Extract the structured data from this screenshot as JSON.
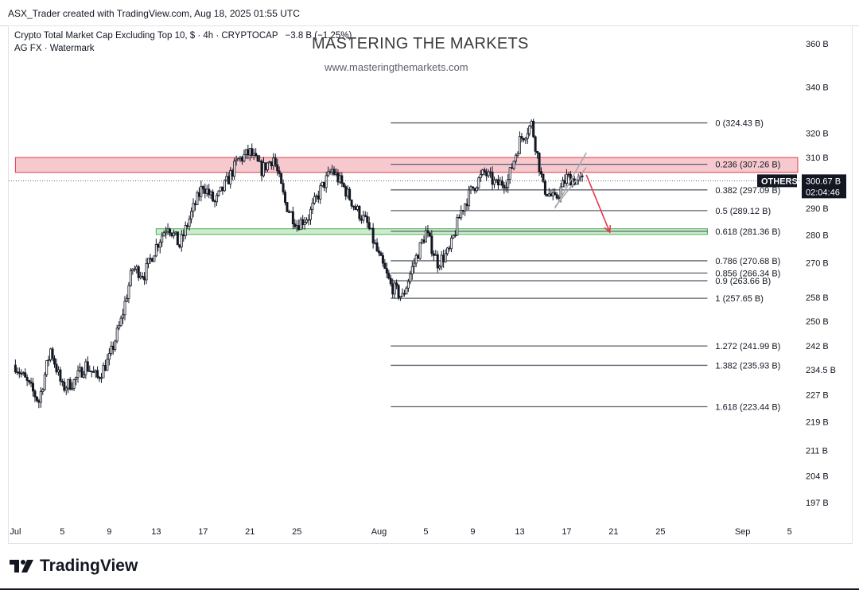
{
  "header": {
    "credit": "ASX_Trader created with TradingView.com, Aug 18, 2025 01:55 UTC"
  },
  "legend": {
    "symbol_text": "Crypto Total Market Cap Excluding Top 10, $ · 4h · CRYPTOCAP",
    "change_text": "−3.8 B (−1.25%)",
    "indicator_text": "AG FX · Watermark"
  },
  "watermark": {
    "title": "MASTERING THE MARKETS",
    "url": "www.masteringthemarkets.com"
  },
  "price_badge": {
    "label": "OTHERS",
    "price": "300.67 B",
    "countdown": "02:04:46"
  },
  "footer": {
    "brand": "TradingView"
  },
  "colors": {
    "resistance_zone": "#f6c9ce",
    "resistance_border": "#e23a4b",
    "support_zone": "#cdeccf",
    "support_border": "#4caf50",
    "candles": "#131722",
    "fib_lines": "#5d606b",
    "projection_arrow": "#e23a4b",
    "channel": "#a8aab0"
  },
  "chart_data": {
    "type": "candlestick",
    "title": "Crypto Total Market Cap Excluding Top 10",
    "interval": "4h",
    "symbol": "CRYPTOCAP:OTHERS",
    "unit": "$",
    "last_price": 300.67,
    "y_scale": "log",
    "y_ticks": [
      {
        "label": "360 B",
        "value": 360
      },
      {
        "label": "340 B",
        "value": 340
      },
      {
        "label": "320 B",
        "value": 320
      },
      {
        "label": "310 B",
        "value": 310
      },
      {
        "label": "290 B",
        "value": 290
      },
      {
        "label": "280 B",
        "value": 280
      },
      {
        "label": "270 B",
        "value": 270
      },
      {
        "label": "258 B",
        "value": 258
      },
      {
        "label": "250 B",
        "value": 250
      },
      {
        "label": "242 B",
        "value": 242
      },
      {
        "label": "234.5 B",
        "value": 234.5
      },
      {
        "label": "227 B",
        "value": 227
      },
      {
        "label": "219 B",
        "value": 219
      },
      {
        "label": "211 B",
        "value": 211
      },
      {
        "label": "204 B",
        "value": 204
      },
      {
        "label": "197 B",
        "value": 197
      }
    ],
    "x_ticks": [
      {
        "label": "Jul",
        "date": "2025-07-01"
      },
      {
        "label": "5",
        "date": "2025-07-05"
      },
      {
        "label": "9",
        "date": "2025-07-09"
      },
      {
        "label": "13",
        "date": "2025-07-13"
      },
      {
        "label": "17",
        "date": "2025-07-17"
      },
      {
        "label": "21",
        "date": "2025-07-21"
      },
      {
        "label": "25",
        "date": "2025-07-25"
      },
      {
        "label": "Aug",
        "date": "2025-08-01"
      },
      {
        "label": "5",
        "date": "2025-08-05"
      },
      {
        "label": "9",
        "date": "2025-08-09"
      },
      {
        "label": "13",
        "date": "2025-08-13"
      },
      {
        "label": "17",
        "date": "2025-08-17"
      },
      {
        "label": "21",
        "date": "2025-08-21"
      },
      {
        "label": "25",
        "date": "2025-08-25"
      },
      {
        "label": "Sep",
        "date": "2025-09-01"
      },
      {
        "label": "5",
        "date": "2025-09-05"
      }
    ],
    "price_path": [
      {
        "date": "2025-07-01",
        "value": 236
      },
      {
        "date": "2025-07-03",
        "value": 225
      },
      {
        "date": "2025-07-04",
        "value": 241
      },
      {
        "date": "2025-07-05",
        "value": 229
      },
      {
        "date": "2025-07-06",
        "value": 231
      },
      {
        "date": "2025-07-07",
        "value": 236
      },
      {
        "date": "2025-07-08",
        "value": 232
      },
      {
        "date": "2025-07-09",
        "value": 238
      },
      {
        "date": "2025-07-10",
        "value": 250
      },
      {
        "date": "2025-07-11",
        "value": 268
      },
      {
        "date": "2025-07-12",
        "value": 266
      },
      {
        "date": "2025-07-13",
        "value": 276
      },
      {
        "date": "2025-07-14",
        "value": 284
      },
      {
        "date": "2025-07-15",
        "value": 276
      },
      {
        "date": "2025-07-16",
        "value": 288
      },
      {
        "date": "2025-07-17",
        "value": 299
      },
      {
        "date": "2025-07-18",
        "value": 292
      },
      {
        "date": "2025-07-19",
        "value": 300
      },
      {
        "date": "2025-07-20",
        "value": 309
      },
      {
        "date": "2025-07-21",
        "value": 312
      },
      {
        "date": "2025-07-22",
        "value": 305
      },
      {
        "date": "2025-07-23",
        "value": 310
      },
      {
        "date": "2025-07-24",
        "value": 292
      },
      {
        "date": "2025-07-25",
        "value": 284
      },
      {
        "date": "2025-07-26",
        "value": 287
      },
      {
        "date": "2025-07-27",
        "value": 297
      },
      {
        "date": "2025-07-28",
        "value": 305
      },
      {
        "date": "2025-07-29",
        "value": 298
      },
      {
        "date": "2025-07-30",
        "value": 290
      },
      {
        "date": "2025-07-31",
        "value": 284
      },
      {
        "date": "2025-08-01",
        "value": 272
      },
      {
        "date": "2025-08-02",
        "value": 262
      },
      {
        "date": "2025-08-03",
        "value": 258
      },
      {
        "date": "2025-08-04",
        "value": 270
      },
      {
        "date": "2025-08-05",
        "value": 281
      },
      {
        "date": "2025-08-06",
        "value": 270
      },
      {
        "date": "2025-08-07",
        "value": 274
      },
      {
        "date": "2025-08-08",
        "value": 289
      },
      {
        "date": "2025-08-09",
        "value": 298
      },
      {
        "date": "2025-08-10",
        "value": 304
      },
      {
        "date": "2025-08-11",
        "value": 299
      },
      {
        "date": "2025-08-12",
        "value": 301
      },
      {
        "date": "2025-08-13",
        "value": 317
      },
      {
        "date": "2025-08-14",
        "value": 324
      },
      {
        "date": "2025-08-15",
        "value": 298
      },
      {
        "date": "2025-08-16",
        "value": 293
      },
      {
        "date": "2025-08-17",
        "value": 302
      },
      {
        "date": "2025-08-18",
        "value": 300.67
      }
    ],
    "fibonacci": [
      {
        "level": "0",
        "value": 324.43,
        "label": "0 (324.43 B)"
      },
      {
        "level": "0.236",
        "value": 307.26,
        "label": "0.236 (307.26 B)"
      },
      {
        "level": "0.382",
        "value": 297.09,
        "label": "0.382 (297.09 B)"
      },
      {
        "level": "0.5",
        "value": 289.12,
        "label": "0.5 (289.12 B)"
      },
      {
        "level": "0.618",
        "value": 281.36,
        "label": "0.618 (281.36 B)"
      },
      {
        "level": "0.786",
        "value": 270.68,
        "label": "0.786 (270.68 B)"
      },
      {
        "level": "0.856",
        "value": 266.34,
        "label": "0.856 (266.34 B)"
      },
      {
        "level": "0.9",
        "value": 263.66,
        "label": "0.9 (263.66 B)"
      },
      {
        "level": "1",
        "value": 257.65,
        "label": "1 (257.65 B)"
      },
      {
        "level": "1.272",
        "value": 241.99,
        "label": "1.272 (241.99 B)"
      },
      {
        "level": "1.382",
        "value": 235.93,
        "label": "1.382 (235.93 B)"
      },
      {
        "level": "1.618",
        "value": 223.44,
        "label": "1.618 (223.44 B)"
      }
    ],
    "fib_start_date": "2025-08-02",
    "fib_end_date": "2025-08-29",
    "zones": [
      {
        "name": "resistance",
        "from": 304,
        "to": 310,
        "start_date": "2025-07-01",
        "end_date": "2025-09-09"
      },
      {
        "name": "support",
        "from": 280.2,
        "to": 282.3,
        "start_date": "2025-07-13",
        "end_date": "2025-08-29"
      }
    ],
    "projection": {
      "from_date": "2025-08-18",
      "from_value": 303,
      "to_date": "2025-08-20",
      "to_value": 281
    },
    "channel": [
      {
        "from_date": "2025-08-16",
        "from_value": 290,
        "to_date": "2025-08-18",
        "to_value": 312
      },
      {
        "from_date": "2025-08-16",
        "from_value": 290.5,
        "to_date": "2025-08-18",
        "to_value": 306
      }
    ]
  }
}
